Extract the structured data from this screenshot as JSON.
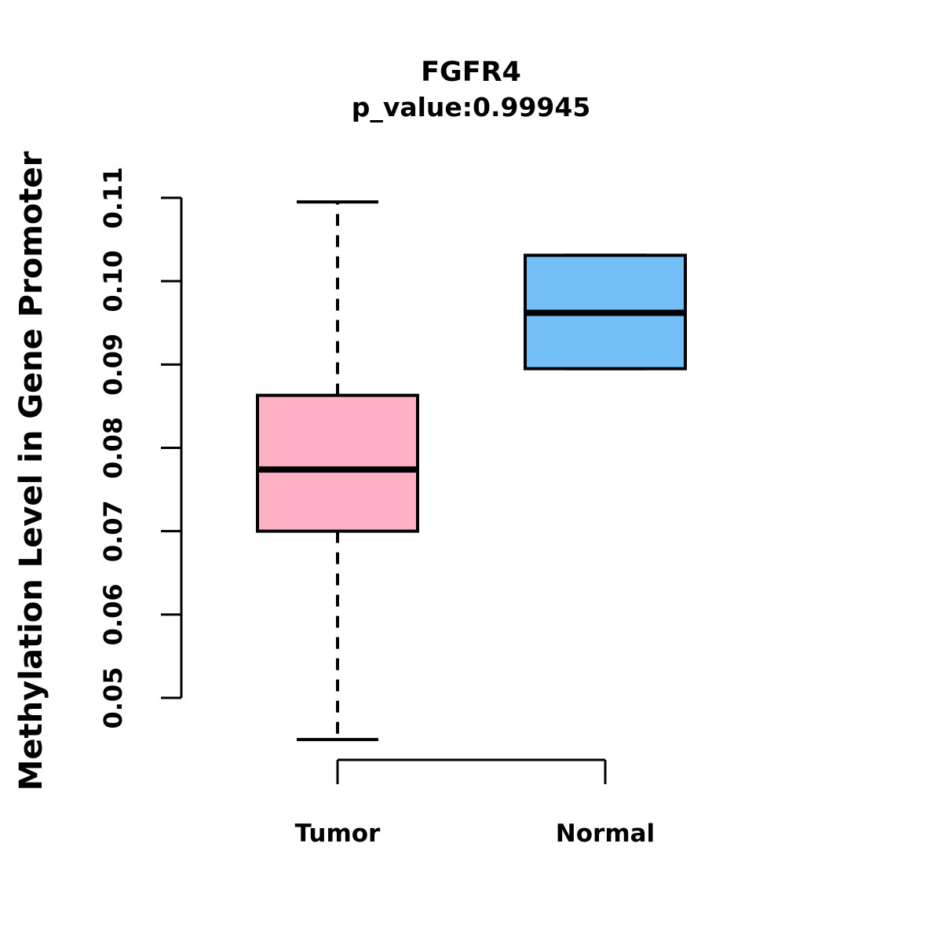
{
  "chart_data": {
    "type": "boxplot",
    "title": "FGFR4",
    "subtitle": "p_value:0.99945",
    "ylabel": "Methylation Level in Gene Promoter",
    "xlabel": "",
    "categories": [
      "Tumor",
      "Normal"
    ],
    "series": [
      {
        "name": "Tumor",
        "lower_whisker": 0.045,
        "q1": 0.07,
        "median": 0.0774,
        "q3": 0.0863,
        "upper_whisker": 0.1095,
        "outliers": [],
        "fill_color": "#FFB0C2"
      },
      {
        "name": "Normal",
        "lower_whisker": 0.0895,
        "q1": 0.0895,
        "median": 0.0962,
        "q3": 0.1031,
        "upper_whisker": 0.1031,
        "outliers": [],
        "fill_color": "#74BFF7"
      }
    ],
    "yticks": [
      0.05,
      0.06,
      0.07,
      0.08,
      0.09,
      0.1,
      0.11
    ],
    "ylim": [
      0.044,
      0.111
    ],
    "tick_format_decimals": 2,
    "axis_color": "#000000",
    "background_color": "#FFFFFF",
    "grid": false,
    "legend": "none"
  }
}
